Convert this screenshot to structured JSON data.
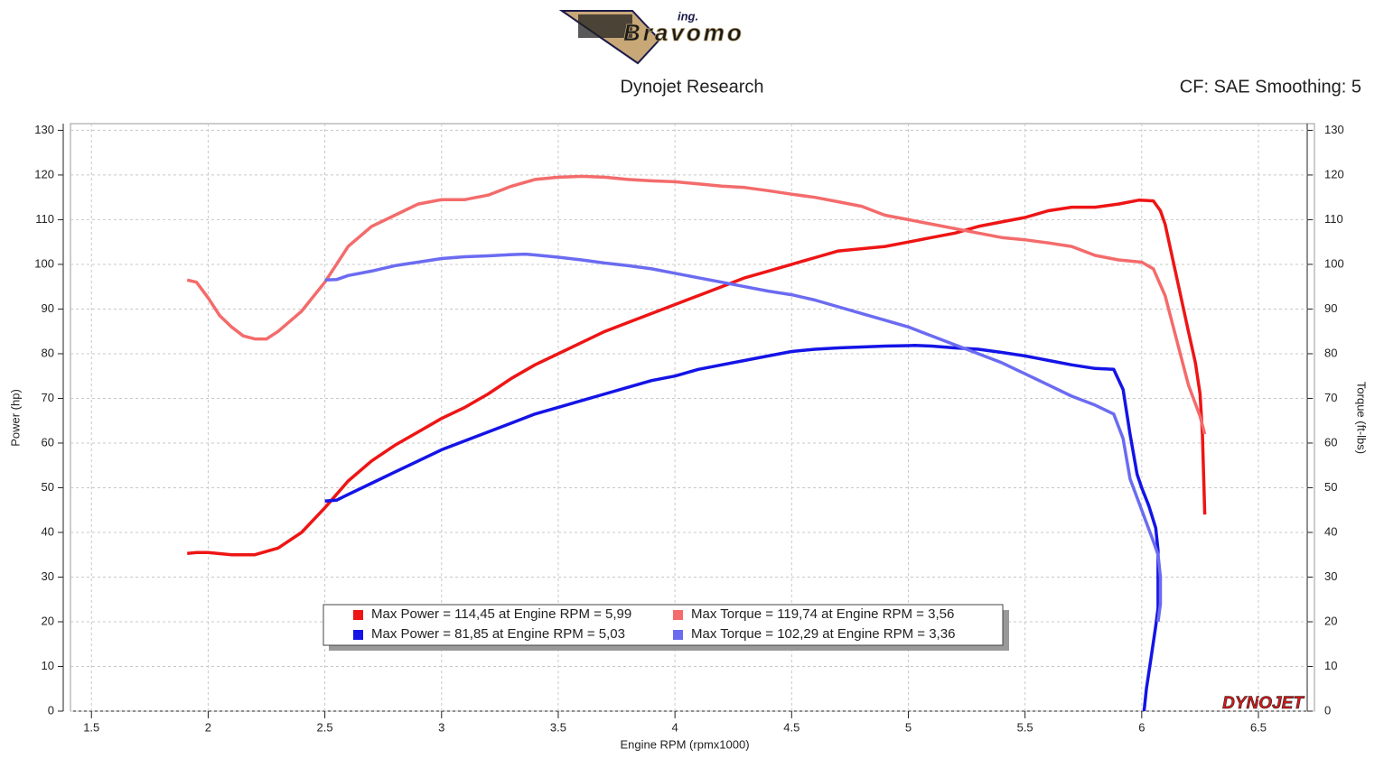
{
  "logo": {
    "prefix": "ing.",
    "name": "Bravomo"
  },
  "chart_data": {
    "type": "line",
    "title": "Dynojet Research",
    "subtitle": "CF: SAE Smoothing: 5",
    "xlabel": "Engine RPM (rpmx1000)",
    "ylabel": "Power (hp)",
    "y2label": "Torque (ft-lbs)",
    "watermark": "DYNOJET",
    "xlim": [
      1.41,
      6.74
    ],
    "xticks": [
      1.5,
      2.0,
      2.5,
      3.0,
      3.5,
      4.0,
      4.5,
      5.0,
      5.5,
      6.0,
      6.5
    ],
    "ylim": [
      0,
      131.5
    ],
    "yticks": [
      0,
      10,
      20,
      30,
      40,
      50,
      60,
      70,
      80,
      90,
      100,
      110,
      120,
      130
    ],
    "y2lim": [
      0,
      131.5
    ],
    "y2ticks": [
      0,
      10,
      20,
      30,
      40,
      50,
      60,
      70,
      80,
      90,
      100,
      110,
      120,
      130
    ],
    "grid": true,
    "series": [
      {
        "name": "Max Power = 114,45 at Engine RPM = 5,99",
        "color": "#ee1515",
        "x": [
          1.91,
          1.95,
          2.0,
          2.1,
          2.2,
          2.3,
          2.4,
          2.5,
          2.6,
          2.7,
          2.8,
          2.9,
          3.0,
          3.1,
          3.2,
          3.3,
          3.4,
          3.5,
          3.6,
          3.7,
          3.8,
          3.9,
          4.0,
          4.1,
          4.2,
          4.3,
          4.4,
          4.5,
          4.6,
          4.7,
          4.8,
          4.9,
          5.0,
          5.1,
          5.2,
          5.3,
          5.4,
          5.5,
          5.6,
          5.7,
          5.8,
          5.9,
          5.99,
          6.05,
          6.08,
          6.1,
          6.15,
          6.2,
          6.23,
          6.25,
          6.26,
          6.27
        ],
        "values": [
          35.3,
          35.5,
          35.5,
          35,
          35,
          36.5,
          40,
          45.5,
          51.5,
          56,
          59.5,
          62.5,
          65.5,
          68,
          71,
          74.5,
          77.5,
          80,
          82.5,
          85,
          87,
          89,
          91,
          93,
          95,
          97,
          98.5,
          100,
          101.5,
          103,
          103.5,
          104,
          105,
          106,
          107,
          108.5,
          109.5,
          110.5,
          112,
          112.8,
          112.8,
          113.5,
          114.4,
          114.2,
          112,
          109,
          97,
          85,
          78,
          71,
          62,
          44
        ]
      },
      {
        "name": "Max Torque = 119,74 at Engine RPM = 3,56",
        "color": "#f46b6b",
        "axis": "y2",
        "x": [
          1.91,
          1.95,
          2.0,
          2.05,
          2.1,
          2.15,
          2.2,
          2.25,
          2.3,
          2.4,
          2.5,
          2.6,
          2.7,
          2.8,
          2.9,
          3.0,
          3.1,
          3.2,
          3.3,
          3.4,
          3.5,
          3.6,
          3.7,
          3.8,
          3.9,
          4.0,
          4.1,
          4.2,
          4.3,
          4.4,
          4.5,
          4.6,
          4.7,
          4.8,
          4.9,
          5.0,
          5.1,
          5.2,
          5.3,
          5.4,
          5.5,
          5.6,
          5.7,
          5.8,
          5.9,
          6.0,
          6.05,
          6.1,
          6.15,
          6.2,
          6.25,
          6.27
        ],
        "values": [
          96.5,
          96,
          92.5,
          88.5,
          86,
          84,
          83.3,
          83.3,
          85,
          89.5,
          96,
          104,
          108.5,
          111,
          113.5,
          114.5,
          114.5,
          115.5,
          117.5,
          119,
          119.5,
          119.7,
          119.5,
          119,
          118.7,
          118.5,
          118,
          117.5,
          117.2,
          116.5,
          115.7,
          115,
          114,
          113,
          111,
          110,
          109,
          108,
          107,
          106,
          105.5,
          104.8,
          104,
          102,
          101,
          100.5,
          99,
          93,
          83,
          73,
          66,
          62
        ]
      },
      {
        "name": "Max Power = 81,85 at Engine RPM = 5,03",
        "color": "#1414e6",
        "x": [
          2.5,
          2.55,
          2.6,
          2.7,
          2.8,
          2.9,
          3.0,
          3.1,
          3.2,
          3.3,
          3.4,
          3.5,
          3.6,
          3.7,
          3.8,
          3.9,
          4.0,
          4.1,
          4.2,
          4.3,
          4.4,
          4.5,
          4.6,
          4.7,
          4.8,
          4.9,
          5.0,
          5.03,
          5.1,
          5.2,
          5.3,
          5.4,
          5.5,
          5.6,
          5.7,
          5.8,
          5.88,
          5.92,
          5.95,
          5.98,
          6.0,
          6.03,
          6.06,
          6.07,
          6.07,
          6.06,
          6.04,
          6.02,
          6.01
        ],
        "values": [
          47,
          47.2,
          48.5,
          51,
          53.5,
          56,
          58.5,
          60.5,
          62.5,
          64.5,
          66.5,
          68,
          69.5,
          71,
          72.5,
          74,
          75,
          76.5,
          77.5,
          78.5,
          79.5,
          80.5,
          81,
          81.3,
          81.5,
          81.7,
          81.8,
          81.85,
          81.7,
          81.3,
          81,
          80.3,
          79.5,
          78.5,
          77.5,
          76.7,
          76.5,
          72,
          62,
          53,
          50,
          46,
          41,
          36,
          23,
          19,
          12,
          5,
          0
        ]
      },
      {
        "name": "Max Torque = 102,29 at Engine RPM = 3,36",
        "color": "#6b6bf2",
        "axis": "y2",
        "x": [
          2.5,
          2.55,
          2.6,
          2.7,
          2.8,
          2.9,
          3.0,
          3.1,
          3.2,
          3.3,
          3.36,
          3.4,
          3.5,
          3.6,
          3.7,
          3.8,
          3.9,
          4.0,
          4.1,
          4.2,
          4.3,
          4.4,
          4.5,
          4.6,
          4.7,
          4.8,
          4.9,
          5.0,
          5.1,
          5.2,
          5.3,
          5.4,
          5.5,
          5.6,
          5.7,
          5.8,
          5.88,
          5.92,
          5.95,
          6.0,
          6.05,
          6.07,
          6.08,
          6.08,
          6.07
        ],
        "values": [
          96.5,
          96.6,
          97.5,
          98.5,
          99.7,
          100.5,
          101.3,
          101.7,
          101.9,
          102.2,
          102.3,
          102.1,
          101.6,
          101,
          100.3,
          99.7,
          99,
          98,
          97,
          96,
          95,
          94,
          93.2,
          92,
          90.5,
          89,
          87.5,
          86,
          84,
          82,
          80,
          78,
          75.5,
          73,
          70.5,
          68.5,
          66.5,
          61,
          52,
          45,
          38,
          35,
          30,
          24,
          20
        ]
      }
    ]
  }
}
